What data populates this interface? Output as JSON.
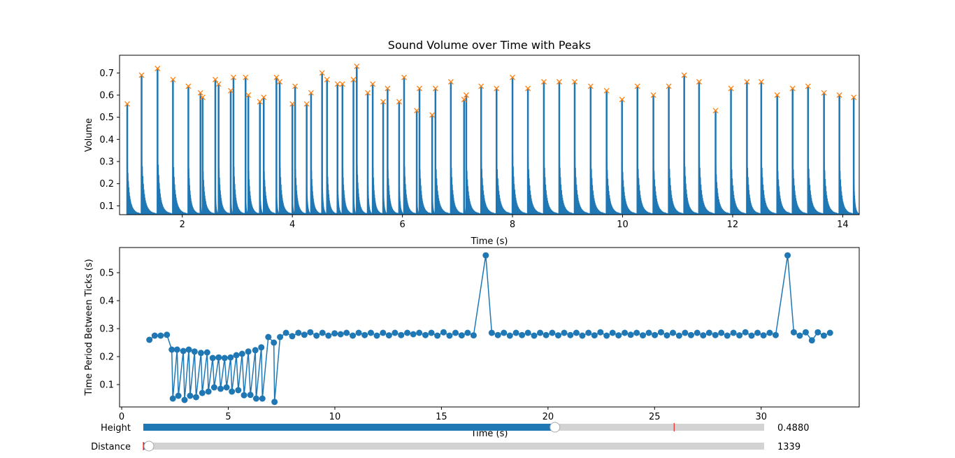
{
  "chart_data": [
    {
      "type": "area",
      "title": "Sound Volume over Time with Peaks",
      "xlabel": "Time (s)",
      "ylabel": "Volume",
      "xlim": [
        0.86,
        14.3
      ],
      "ylim": [
        0.06,
        0.78
      ],
      "xticks": [
        2,
        4,
        6,
        8,
        10,
        12,
        14
      ],
      "yticks": [
        0.1,
        0.2,
        0.3,
        0.4,
        0.5,
        0.6,
        0.7
      ],
      "grid": false,
      "series_color": "#1f77b4",
      "peak_marker_color": "#ff7f0e",
      "peaks": {
        "x": [
          1.0,
          1.26,
          1.55,
          1.83,
          2.11,
          2.33,
          2.37,
          2.6,
          2.66,
          2.88,
          2.93,
          3.15,
          3.2,
          3.41,
          3.48,
          3.71,
          3.77,
          4.0,
          4.05,
          4.26,
          4.34,
          4.54,
          4.63,
          4.82,
          4.91,
          5.11,
          5.17,
          5.37,
          5.46,
          5.65,
          5.73,
          5.94,
          6.03,
          6.26,
          6.31,
          6.54,
          6.6,
          6.88,
          7.12,
          7.16,
          7.43,
          7.71,
          8.0,
          8.28,
          8.57,
          8.85,
          9.13,
          9.42,
          9.71,
          9.99,
          10.27,
          10.56,
          10.84,
          11.12,
          11.39,
          11.69,
          11.97,
          12.26,
          12.52,
          12.81,
          13.09,
          13.37,
          13.66,
          13.94,
          14.2
        ],
        "y": [
          0.56,
          0.69,
          0.72,
          0.67,
          0.64,
          0.61,
          0.59,
          0.67,
          0.65,
          0.62,
          0.68,
          0.68,
          0.6,
          0.57,
          0.59,
          0.68,
          0.66,
          0.56,
          0.64,
          0.56,
          0.61,
          0.7,
          0.67,
          0.65,
          0.65,
          0.67,
          0.73,
          0.61,
          0.65,
          0.57,
          0.63,
          0.57,
          0.68,
          0.53,
          0.63,
          0.51,
          0.63,
          0.66,
          0.58,
          0.6,
          0.64,
          0.63,
          0.68,
          0.63,
          0.66,
          0.66,
          0.66,
          0.64,
          0.62,
          0.58,
          0.64,
          0.6,
          0.64,
          0.69,
          0.66,
          0.53,
          0.63,
          0.66,
          0.66,
          0.6,
          0.63,
          0.64,
          0.61,
          0.6,
          0.59
        ]
      }
    },
    {
      "type": "line",
      "title": "",
      "xlabel": "Time (s)",
      "ylabel": "Time Period Between Ticks (s)",
      "xlim": [
        -0.1,
        34.6
      ],
      "ylim": [
        0.02,
        0.59
      ],
      "xticks": [
        0,
        5,
        10,
        15,
        20,
        25,
        30
      ],
      "yticks": [
        0.1,
        0.2,
        0.3,
        0.4,
        0.5
      ],
      "grid": false,
      "series_color": "#1f77b4",
      "x": [
        1.3,
        1.55,
        1.83,
        2.12,
        2.35,
        2.4,
        2.6,
        2.66,
        2.89,
        2.95,
        3.15,
        3.21,
        3.42,
        3.49,
        3.72,
        3.78,
        4.01,
        4.07,
        4.27,
        4.34,
        4.55,
        4.64,
        4.83,
        4.92,
        5.11,
        5.17,
        5.38,
        5.47,
        5.65,
        5.74,
        5.94,
        6.04,
        6.27,
        6.31,
        6.55,
        6.6,
        6.88,
        7.14,
        7.17,
        7.43,
        7.71,
        8.0,
        8.29,
        8.57,
        8.85,
        9.14,
        9.42,
        9.7,
        9.99,
        10.27,
        10.55,
        10.84,
        11.12,
        11.4,
        11.69,
        11.97,
        12.26,
        12.54,
        12.82,
        13.11,
        13.4,
        13.68,
        13.96,
        14.25,
        14.53,
        14.81,
        15.1,
        15.38,
        15.66,
        15.95,
        16.23,
        16.51,
        17.08,
        17.36,
        17.65,
        17.93,
        18.21,
        18.5,
        18.78,
        19.06,
        19.35,
        19.63,
        19.91,
        20.2,
        20.48,
        20.76,
        21.05,
        21.33,
        21.61,
        21.9,
        22.18,
        22.46,
        22.75,
        23.03,
        23.31,
        23.6,
        23.88,
        24.16,
        24.45,
        24.73,
        25.01,
        25.3,
        25.58,
        25.86,
        26.15,
        26.43,
        26.71,
        27.0,
        27.28,
        27.56,
        27.85,
        28.13,
        28.41,
        28.7,
        28.98,
        29.26,
        29.55,
        29.83,
        30.11,
        30.4,
        30.68,
        31.24,
        31.53,
        31.81,
        32.09,
        32.38,
        32.66,
        32.94,
        33.23
      ],
      "y": [
        0.26,
        0.275,
        0.275,
        0.278,
        0.225,
        0.05,
        0.225,
        0.06,
        0.22,
        0.045,
        0.225,
        0.06,
        0.218,
        0.055,
        0.213,
        0.07,
        0.215,
        0.075,
        0.195,
        0.09,
        0.197,
        0.085,
        0.195,
        0.09,
        0.197,
        0.075,
        0.205,
        0.08,
        0.21,
        0.062,
        0.218,
        0.063,
        0.223,
        0.05,
        0.233,
        0.05,
        0.27,
        0.25,
        0.038,
        0.27,
        0.285,
        0.273,
        0.285,
        0.278,
        0.287,
        0.275,
        0.285,
        0.275,
        0.283,
        0.28,
        0.285,
        0.275,
        0.285,
        0.277,
        0.285,
        0.275,
        0.285,
        0.276,
        0.285,
        0.277,
        0.285,
        0.28,
        0.285,
        0.277,
        0.285,
        0.275,
        0.287,
        0.275,
        0.285,
        0.276,
        0.285,
        0.276,
        0.562,
        0.285,
        0.277,
        0.285,
        0.275,
        0.285,
        0.277,
        0.285,
        0.275,
        0.285,
        0.277,
        0.285,
        0.276,
        0.285,
        0.277,
        0.285,
        0.275,
        0.285,
        0.276,
        0.287,
        0.275,
        0.285,
        0.276,
        0.285,
        0.278,
        0.285,
        0.276,
        0.285,
        0.277,
        0.287,
        0.276,
        0.285,
        0.275,
        0.285,
        0.277,
        0.285,
        0.276,
        0.285,
        0.277,
        0.285,
        0.275,
        0.285,
        0.276,
        0.287,
        0.275,
        0.285,
        0.276,
        0.285,
        0.277,
        0.562,
        0.287,
        0.275,
        0.287,
        0.258,
        0.287,
        0.275,
        0.285
      ]
    }
  ],
  "sliders": [
    {
      "label": "Height",
      "value_text": "0.4880",
      "fill_fraction": 0.663,
      "initial_marker_fraction": 0.855,
      "fill_color": "#1f77b4",
      "track_color": "#d3d3d3",
      "marker_color": "#ff0000"
    },
    {
      "label": "Distance",
      "value_text": "1339",
      "fill_fraction": 0.009,
      "initial_marker_fraction": 0.0,
      "fill_color": "#1f77b4",
      "track_color": "#d3d3d3",
      "marker_color": "#ff0000"
    }
  ]
}
